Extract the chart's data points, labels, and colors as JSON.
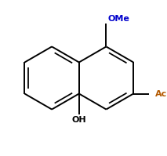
{
  "background_color": "#ffffff",
  "line_color": "#000000",
  "OMe_color": "#0000cc",
  "Ac_color": "#b35900",
  "OH_color": "#000000",
  "line_width": 1.4,
  "figsize": [
    2.13,
    1.99
  ],
  "dpi": 100,
  "r_hex": 0.38,
  "xlim": [
    -0.95,
    0.85
  ],
  "ylim": [
    -0.72,
    0.72
  ]
}
